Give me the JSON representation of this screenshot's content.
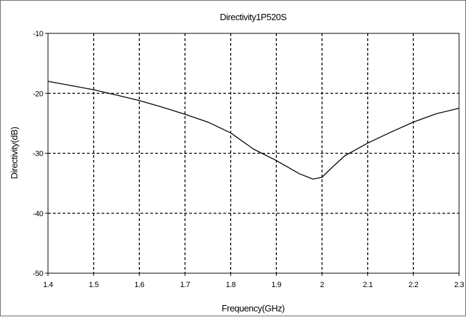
{
  "chart_data": {
    "type": "line",
    "title": "Directivity1P520S",
    "xlabel": "Frequency(GHz)",
    "ylabel": "Directivity(dB)",
    "xlim": [
      1.4,
      2.3
    ],
    "ylim": [
      -50,
      -10
    ],
    "xticks": [
      1.4,
      1.5,
      1.6,
      1.7,
      1.8,
      1.9,
      2.0,
      2.1,
      2.2,
      2.3
    ],
    "xtick_labels": [
      "1.4",
      "1.5",
      "1.6",
      "1.7",
      "1.8",
      "1.9",
      "2",
      "2.1",
      "2.2",
      "2.3"
    ],
    "yticks": [
      -10,
      -20,
      -30,
      -40,
      -50
    ],
    "ytick_labels": [
      "-10",
      "-20",
      "-30",
      "-40",
      "-50"
    ],
    "grid": true,
    "series": [
      {
        "color": "#000000",
        "x": [
          1.4,
          1.45,
          1.5,
          1.55,
          1.6,
          1.65,
          1.7,
          1.75,
          1.8,
          1.85,
          1.9,
          1.95,
          1.98,
          2.0,
          2.02,
          2.05,
          2.1,
          2.15,
          2.2,
          2.25,
          2.3
        ],
        "y": [
          -18.0,
          -18.7,
          -19.4,
          -20.3,
          -21.2,
          -22.3,
          -23.5,
          -24.8,
          -26.6,
          -29.3,
          -31.2,
          -33.4,
          -34.3,
          -34.0,
          -32.5,
          -30.4,
          -28.3,
          -26.5,
          -24.8,
          -23.4,
          -22.5
        ]
      }
    ]
  }
}
